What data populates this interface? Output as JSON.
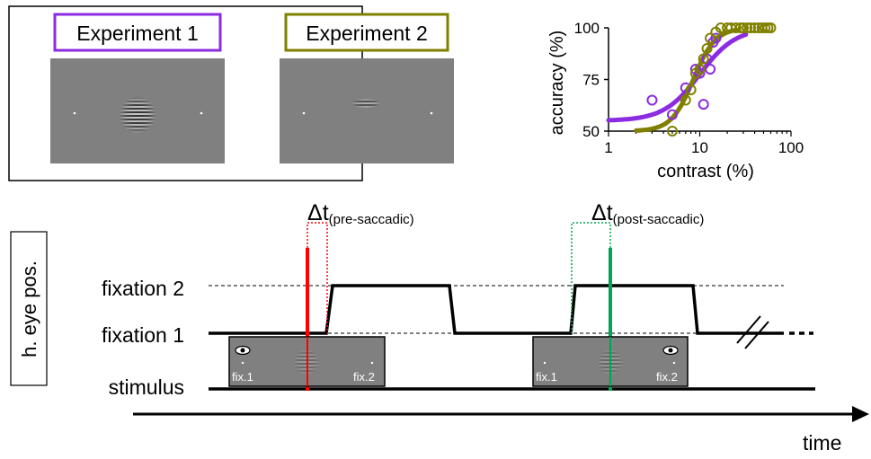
{
  "experiments": {
    "exp1_label": "Experiment 1",
    "exp2_label": "Experiment 2"
  },
  "colors": {
    "exp1": "#8b2be2",
    "exp2": "#808000",
    "pre": "#ff0000",
    "post": "#00a651",
    "stim_gray": "#808080"
  },
  "timeline": {
    "ylabel": "h. eye pos.",
    "fixation2": "fixation 2",
    "fixation1": "fixation 1",
    "stimulus": "stimulus",
    "time_label": "time",
    "delta": "Δt",
    "pre_sub": "(pre-saccadic)",
    "post_sub": "(post-saccadic)",
    "fix1_label": "fix.1",
    "fix2_label": "fix.2"
  },
  "chart_data": {
    "type": "scatter",
    "xlabel": "contrast (%)",
    "ylabel": "accuracy (%)",
    "xscale": "log",
    "xlim": [
      1,
      100
    ],
    "ylim": [
      50,
      100
    ],
    "xticks": [
      1,
      10,
      100
    ],
    "yticks": [
      50,
      75,
      100
    ],
    "series": [
      {
        "color": "#8b2be2",
        "points": [
          [
            3,
            65
          ],
          [
            5,
            58
          ],
          [
            7,
            71
          ],
          [
            9,
            80
          ],
          [
            10,
            78
          ],
          [
            11,
            63
          ],
          [
            12,
            85
          ],
          [
            13,
            80
          ],
          [
            14,
            93
          ],
          [
            15,
            95
          ]
        ],
        "fit": {
          "lower": 55,
          "upper": 100,
          "x50": 10,
          "slope": 2.2
        }
      },
      {
        "color": "#808000",
        "points": [
          [
            5,
            50
          ],
          [
            7,
            65
          ],
          [
            8,
            70
          ],
          [
            9,
            78
          ],
          [
            10,
            80
          ],
          [
            11,
            85
          ],
          [
            12,
            90
          ],
          [
            13,
            95
          ],
          [
            15,
            98
          ],
          [
            17,
            100
          ],
          [
            20,
            100
          ],
          [
            22,
            100
          ],
          [
            25,
            100
          ],
          [
            28,
            100
          ],
          [
            30,
            100
          ],
          [
            33,
            100
          ],
          [
            36,
            100
          ],
          [
            40,
            100
          ],
          [
            44,
            100
          ],
          [
            48,
            100
          ],
          [
            52,
            100
          ],
          [
            56,
            100
          ],
          [
            60,
            100
          ]
        ],
        "fit": {
          "lower": 50,
          "upper": 100,
          "x50": 8.5,
          "slope": 3.6
        }
      }
    ]
  }
}
